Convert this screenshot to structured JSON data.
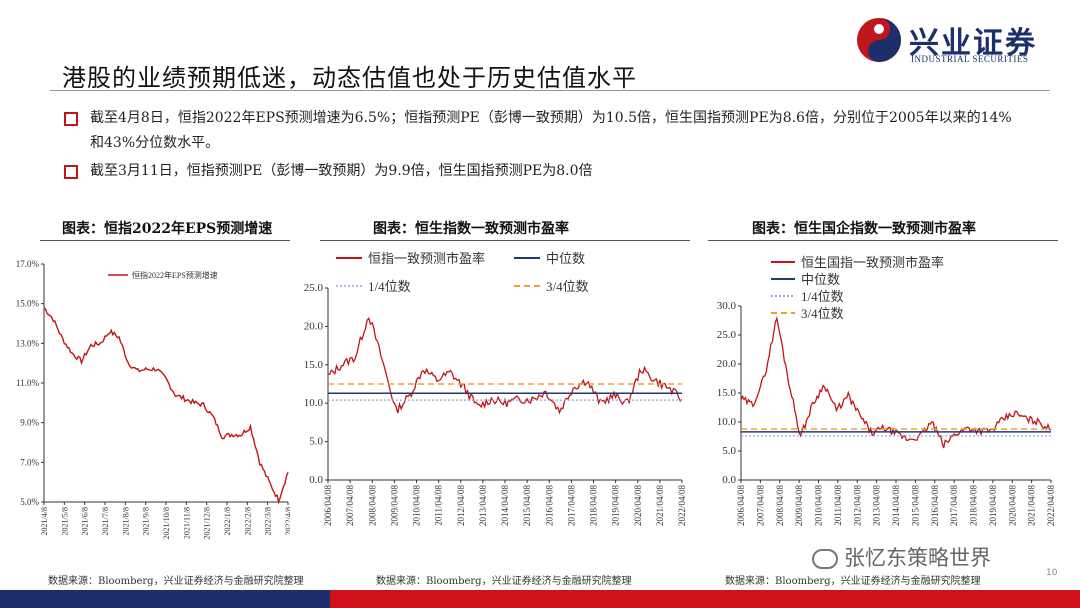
{
  "header": {
    "title": "港股的业绩预期低迷，动态估值也处于历史估值水平",
    "logo_name": "兴业证券",
    "logo_en": "INDUSTRIAL SECURITIES"
  },
  "bullets": [
    "截至4月8日，恒指2022年EPS预测增速为6.5%；恒指预测PE（彭博一致预期）为10.5倍，恒生国指预测PE为8.6倍，分别位于2005年以来的14%和43%分位数水平。",
    "截至3月11日，恒指预测PE（彭博一致预期）为9.9倍，恒生国指预测PE为8.0倍"
  ],
  "panels": {
    "p1_title": "图表：恒指2022年EPS预测增速",
    "p2_title": "图表：恒生指数一致预测市盈率",
    "p3_title": "图表：恒生国企指数一致预测市盈率",
    "p1_source": "数据来源：Bloomberg，兴业证券经济与金融研究院整理",
    "p2_source": "数据来源：Bloomberg，兴业证券经济与金融研究院整理",
    "p3_source": "数据来源：Bloomberg，兴业证券经济与金融研究院整理"
  },
  "page_number": "10",
  "watermark": "张忆东策略世界",
  "colors": {
    "brand_red": "#c0151b",
    "brand_blue": "#1d2f6b",
    "line_red": "#c0151b",
    "median_navy": "#1f3b73",
    "q1_blue": "#8fa8d8",
    "q3_orange": "#f0a030"
  },
  "chart_data": [
    {
      "type": "line",
      "title": "图表：恒指2022年EPS预测增速",
      "series": [
        {
          "name": "恒指2022年EPS预测增速",
          "x": [
            "2021/4/8",
            "2021/4/22",
            "2021/5/8",
            "2021/5/22",
            "2021/6/8",
            "2021/6/22",
            "2021/7/8",
            "2021/7/22",
            "2021/8/8",
            "2021/8/22",
            "2021/9/8",
            "2021/9/22",
            "2021/10/8",
            "2021/10/22",
            "2021/11/8",
            "2021/11/22",
            "2021/12/8",
            "2021/12/22",
            "2022/1/8",
            "2022/1/22",
            "2022/2/8",
            "2022/2/22",
            "2022/3/8",
            "2022/3/15",
            "2022/3/22",
            "2022/3/29",
            "2022/4/8"
          ],
          "values": [
            14.8,
            14.2,
            13.2,
            12.5,
            12.1,
            12.9,
            13.0,
            13.6,
            13.3,
            12.0,
            11.6,
            11.7,
            11.7,
            11.2,
            10.4,
            10.2,
            10.0,
            9.9,
            9.3,
            8.3,
            8.4,
            8.4,
            8.8,
            7.0,
            6.0,
            5.1,
            6.5
          ]
        }
      ],
      "ylim": [
        5.0,
        17.0
      ],
      "yticks": [
        "5.0%",
        "7.0%",
        "9.0%",
        "11.0%",
        "13.0%",
        "15.0%",
        "17.0%"
      ],
      "xticks": [
        "2021/4/8",
        "2021/5/8",
        "2021/6/8",
        "2021/7/8",
        "2021/8/8",
        "2021/9/8",
        "2021/10/8",
        "2021/11/8",
        "2021/12/8",
        "2022/1/8",
        "2022/2/8",
        "2022/3/8",
        "2022/4/8"
      ]
    },
    {
      "type": "line",
      "title": "图表：恒生指数一致预测市盈率",
      "series": [
        {
          "name": "恒指一致预测市盈率",
          "x": [
            "2006/04",
            "2006/10",
            "2007/04",
            "2007/10",
            "2008/04",
            "2008/10",
            "2009/04",
            "2009/10",
            "2010/04",
            "2010/10",
            "2011/04",
            "2011/10",
            "2012/04",
            "2012/10",
            "2013/04",
            "2014/04",
            "2015/04",
            "2016/02",
            "2017/04",
            "2018/01",
            "2018/10",
            "2019/04",
            "2020/04",
            "2021/02",
            "2021/10",
            "2022/02",
            "2022/04"
          ],
          "values": [
            13.5,
            15.0,
            16.0,
            21.5,
            15.5,
            9.0,
            11.0,
            14.5,
            13.0,
            14.0,
            12.0,
            9.5,
            10.5,
            10.0,
            10.5,
            10.5,
            11.5,
            9.0,
            12.0,
            13.0,
            10.0,
            11.0,
            10.0,
            14.5,
            13.0,
            12.0,
            10.5
          ]
        },
        {
          "name": "中位数",
          "values": [
            11.3
          ]
        },
        {
          "name": "1/4位数",
          "values": [
            10.4
          ]
        },
        {
          "name": "3/4位数",
          "values": [
            12.5
          ]
        }
      ],
      "ylim": [
        0.0,
        25.0
      ],
      "yticks": [
        "0.0",
        "5.0",
        "10.0",
        "15.0",
        "20.0",
        "25.0"
      ],
      "xticks": [
        "2006/04/08",
        "2007/04/08",
        "2008/04/08",
        "2009/04/08",
        "2010/04/08",
        "2011/04/08",
        "2012/04/08",
        "2013/04/08",
        "2014/04/08",
        "2015/04/08",
        "2016/04/08",
        "2017/04/08",
        "2018/04/08",
        "2019/04/08",
        "2020/04/08",
        "2021/04/08",
        "2022/04/08"
      ]
    },
    {
      "type": "line",
      "title": "图表：恒生国企指数一致预测市盈率",
      "series": [
        {
          "name": "恒生国指一致预测市盈率",
          "x": [
            "2006/04",
            "2006/10",
            "2007/04",
            "2007/10",
            "2008/04",
            "2008/10",
            "2009/04",
            "2009/10",
            "2010/04",
            "2010/10",
            "2011/04",
            "2011/10",
            "2012/04",
            "2012/10",
            "2013/06",
            "2014/04",
            "2015/04",
            "2016/02",
            "2017/04",
            "2018/01",
            "2019/01",
            "2020/04",
            "2021/01",
            "2021/06",
            "2021/10",
            "2022/02",
            "2022/04"
          ],
          "values": [
            14.0,
            13.0,
            18.0,
            28.0,
            17.0,
            7.5,
            13.0,
            16.5,
            12.0,
            14.5,
            11.0,
            8.0,
            9.0,
            8.0,
            7.0,
            7.5,
            10.0,
            6.0,
            8.0,
            9.0,
            8.5,
            8.5,
            10.5,
            11.5,
            10.5,
            10.0,
            8.6
          ]
        },
        {
          "name": "中位数",
          "values": [
            8.3
          ]
        },
        {
          "name": "1/4位数",
          "values": [
            7.6
          ]
        },
        {
          "name": "3/4位数",
          "values": [
            8.8
          ]
        }
      ],
      "ylim": [
        0.0,
        30.0
      ],
      "yticks": [
        "0.0",
        "5.0",
        "10.0",
        "15.0",
        "20.0",
        "25.0",
        "30.0"
      ],
      "xticks": [
        "2006/04/08",
        "2007/04/08",
        "2008/04/08",
        "2009/04/08",
        "2010/04/08",
        "2011/04/08",
        "2012/04/08",
        "2013/04/08",
        "2014/04/08",
        "2015/04/08",
        "2016/04/08",
        "2017/04/08",
        "2018/04/08",
        "2019/04/08",
        "2020/04/08",
        "2021/04/08",
        "2022/04/08"
      ]
    }
  ]
}
